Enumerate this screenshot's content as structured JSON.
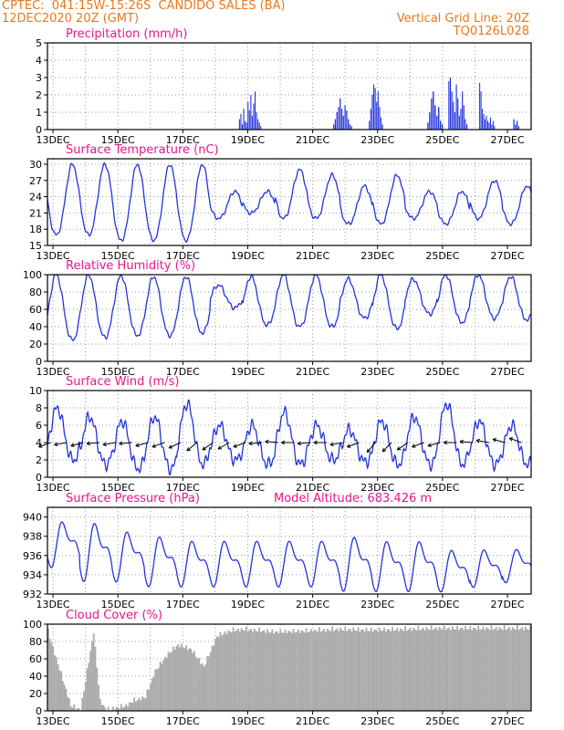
{
  "header": {
    "line1": "CPTEC:  041:15W-15:26S  CANDIDO SALES (BA)",
    "line2_left": "12DEC2020 20Z (GMT)",
    "line2_right": "Vertical Grid Line: 20Z",
    "line3_right": "TQ0126L028"
  },
  "colors": {
    "header": "#e8781e",
    "title": "#e8158c",
    "line": "#2233dd",
    "cloud": "#aaaaaa",
    "wind": "#000000"
  },
  "chart_data": [
    {
      "type": "bar",
      "title": "Precipitation (mm/h)",
      "x_tick_labels": [
        "13DEC",
        "15DEC",
        "17DEC",
        "19DEC",
        "21DEC",
        "23DEC",
        "25DEC",
        "27DEC"
      ],
      "ylim": [
        0,
        5
      ],
      "yticks": [
        0,
        1,
        2,
        3,
        4,
        5
      ],
      "grid": true,
      "x_unit": "day since 12DEC2020 20Z",
      "bursts": [
        {
          "start": 5.9,
          "end": 6.6,
          "values": [
            0.6,
            0.9,
            0.3,
            1.2,
            0.5,
            0.4,
            1.6,
            1.1,
            2.0,
            0.8,
            1.5,
            2.2,
            1.0,
            0.6,
            0.4,
            0.2
          ]
        },
        {
          "start": 8.8,
          "end": 9.4,
          "values": [
            0.3,
            0.6,
            1.0,
            1.3,
            1.8,
            1.2,
            0.8,
            1.4,
            1.1,
            0.6,
            0.3,
            0.2
          ]
        },
        {
          "start": 9.9,
          "end": 10.35,
          "values": [
            0.5,
            1.2,
            2.0,
            2.6,
            2.4,
            1.6,
            2.2,
            1.3,
            0.7,
            0.3
          ]
        },
        {
          "start": 11.7,
          "end": 12.2,
          "values": [
            0.4,
            1.0,
            1.8,
            2.2,
            1.4,
            0.8,
            1.3,
            0.5,
            0.3
          ]
        },
        {
          "start": 12.35,
          "end": 12.95,
          "values": [
            2.8,
            3.0,
            2.2,
            1.6,
            1.0,
            2.6,
            1.8,
            0.8,
            1.2,
            2.2,
            1.4,
            0.6,
            0.3
          ]
        },
        {
          "start": 13.3,
          "end": 13.8,
          "values": [
            2.7,
            2.2,
            1.2,
            0.9,
            0.6,
            0.8,
            0.5,
            0.4,
            0.7,
            0.3,
            0.5,
            0.2
          ]
        },
        {
          "start": 14.35,
          "end": 14.55,
          "values": [
            0.6,
            0.3,
            0.5,
            0.2
          ]
        }
      ]
    },
    {
      "type": "line",
      "title": "Surface Temperature (nC)",
      "x_tick_labels": [
        "13DEC",
        "15DEC",
        "17DEC",
        "19DEC",
        "21DEC",
        "23DEC",
        "25DEC",
        "27DEC"
      ],
      "ylim": [
        15,
        31
      ],
      "yticks": [
        15,
        18,
        21,
        24,
        27,
        30
      ],
      "grid": true,
      "daily_min": [
        17,
        17,
        16,
        16,
        16,
        20,
        21,
        20,
        20,
        19,
        19,
        20,
        19,
        20,
        19
      ],
      "daily_max": [
        30,
        30,
        30,
        30,
        30,
        25,
        25,
        29,
        28,
        26,
        28,
        25,
        25,
        27,
        26
      ],
      "peak_phase": 0.77
    },
    {
      "type": "line",
      "title": "Relative Humidity (%)",
      "x_tick_labels": [
        "13DEC",
        "15DEC",
        "17DEC",
        "19DEC",
        "21DEC",
        "23DEC",
        "25DEC",
        "27DEC"
      ],
      "ylim": [
        0,
        100
      ],
      "yticks": [
        0,
        20,
        40,
        60,
        80,
        100
      ],
      "grid": true,
      "daily_min": [
        25,
        28,
        30,
        30,
        33,
        62,
        42,
        40,
        40,
        50,
        38,
        55,
        45,
        50,
        48
      ],
      "daily_max": [
        100,
        100,
        99,
        98,
        98,
        88,
        98,
        100,
        100,
        95,
        100,
        95,
        100,
        100,
        98
      ],
      "min_phase": 0.77
    },
    {
      "type": "line",
      "title": "Surface Wind (m/s)",
      "x_tick_labels": [
        "13DEC",
        "15DEC",
        "17DEC",
        "19DEC",
        "21DEC",
        "23DEC",
        "25DEC",
        "27DEC"
      ],
      "ylim": [
        0,
        10
      ],
      "yticks": [
        0,
        2,
        4,
        6,
        8,
        10
      ],
      "grid": true,
      "daily_min": [
        2,
        1.5,
        1,
        1,
        1.5,
        2,
        1.5,
        1.5,
        2,
        1.8,
        1.5,
        1.5,
        1.5,
        1.5,
        1.5
      ],
      "daily_max": [
        8,
        7,
        6.5,
        7,
        8.5,
        6,
        6,
        7.5,
        6,
        5.5,
        6.5,
        7,
        8.5,
        6.5,
        6
      ],
      "max_phase": 0.3,
      "arrows_angle_deg": [
        200,
        190,
        195,
        185,
        190,
        185,
        195,
        200,
        205,
        220,
        215,
        210,
        200,
        185,
        175,
        180,
        185,
        180,
        190,
        200,
        230,
        225,
        215,
        200,
        195,
        180,
        175,
        170,
        165,
        160
      ]
    },
    {
      "type": "line",
      "title": "Surface Pressure (hPa)",
      "annotation": "Model Altitude: 683.426 m",
      "x_tick_labels": [
        "13DEC",
        "15DEC",
        "17DEC",
        "19DEC",
        "21DEC",
        "23DEC",
        "25DEC",
        "27DEC"
      ],
      "ylim": [
        932,
        941
      ],
      "yticks": [
        932,
        934,
        936,
        938,
        940
      ],
      "grid": true,
      "daily_high": [
        940,
        940,
        939,
        938.5,
        938,
        938,
        938,
        938,
        938,
        938.5,
        938,
        938,
        937,
        937,
        937
      ],
      "daily_low": [
        934.5,
        933,
        933,
        932.5,
        932.5,
        932.5,
        932.5,
        932.5,
        932.5,
        932,
        932,
        932,
        932,
        932.5,
        933
      ]
    },
    {
      "type": "bar",
      "title": "Cloud Cover (%)",
      "x_tick_labels": [
        "13DEC",
        "15DEC",
        "17DEC",
        "19DEC",
        "21DEC",
        "23DEC",
        "25DEC",
        "27DEC"
      ],
      "ylim": [
        0,
        100
      ],
      "yticks": [
        0,
        20,
        40,
        60,
        80,
        100
      ],
      "grid": true,
      "profile_x": [
        0,
        0.2,
        0.7,
        1.0,
        1.4,
        1.6,
        1.8,
        2.2,
        2.4,
        2.6,
        3.0,
        3.3,
        3.7,
        4.0,
        4.4,
        4.8,
        5.2,
        5.6,
        6.0,
        7,
        8,
        9,
        10,
        11,
        12,
        13,
        14,
        14.9
      ],
      "profile_y": [
        95,
        70,
        10,
        5,
        95,
        15,
        5,
        8,
        10,
        15,
        20,
        50,
        70,
        80,
        75,
        55,
        90,
        96,
        98,
        95,
        96,
        98,
        97,
        98,
        99,
        99,
        99,
        99
      ]
    }
  ]
}
